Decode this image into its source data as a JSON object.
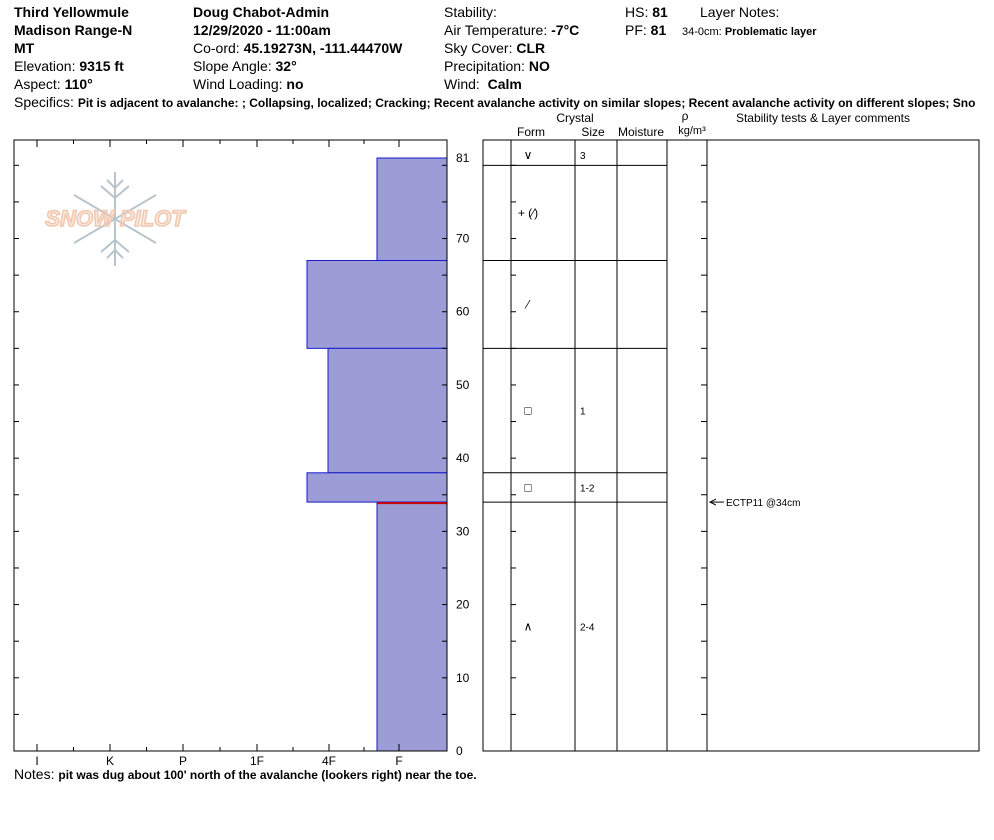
{
  "header": {
    "location": "Third Yellowmule",
    "range": "Madison Range-N",
    "state": "MT",
    "elevation_label": "Elevation:",
    "elevation": "9315 ft",
    "aspect_label": "Aspect:",
    "aspect": "110°",
    "observer": "Doug Chabot-Admin",
    "datetime": "12/29/2020 - 11:00am",
    "coord_label": "Co-ord:",
    "coord": "45.19273N, -111.44470W",
    "slope_label": "Slope Angle:",
    "slope": "32°",
    "wind_loading_label": "Wind Loading:",
    "wind_loading": "no",
    "stability_label": "Stability:",
    "stability": "",
    "air_temp_label": "Air Temperature:",
    "air_temp": "-7°C",
    "sky_label": "Sky Cover:",
    "sky": "CLR",
    "precip_label": "Precipitation:",
    "precip": "NO",
    "wind_label": "Wind:",
    "wind": "Calm",
    "hs_label": "HS:",
    "hs": "81",
    "pf_label": "PF:",
    "pf": "81",
    "layer_notes_label": "Layer Notes:",
    "layer_note_range": "34-0cm:",
    "layer_note_text": "Problematic layer",
    "specifics_label": "Specifics:",
    "specifics": "Pit is adjacent to avalanche: ; Collapsing, localized; Cracking; Recent avalanche activity on similar slopes; Recent avalanche activity on different slopes; Sno"
  },
  "logo_text": "SNOW PILOT",
  "notes_label": "Notes:",
  "notes": "pit was dug about 100' north of the avalanche (lookers right) near the toe.",
  "columns": {
    "crystal": "Crystal",
    "form": "Form",
    "size": "Size",
    "moisture": "Moisture",
    "rho": "ρ",
    "density_unit": "kg/m³",
    "stability_comments": "Stability tests & Layer comments"
  },
  "colors": {
    "layer_fill": "#9c9cd6",
    "layer_edge": "#1a1acc",
    "weak_layer": "#cc0000",
    "logo": "#f2c8b0",
    "snowflake": "#b8c4cc"
  },
  "chart_data": {
    "type": "bar",
    "orientation": "horizontal",
    "xlabel": "",
    "ylabel": "",
    "hardness_categories": [
      "I",
      "K",
      "P",
      "1F",
      "4F",
      "F"
    ],
    "y_ticks": [
      0,
      10,
      20,
      30,
      40,
      50,
      60,
      70,
      81
    ],
    "ylim": [
      0,
      81
    ],
    "layers": [
      {
        "top": 81,
        "bottom": 67,
        "hardness": "F"
      },
      {
        "top": 67,
        "bottom": 55,
        "hardness": "4F"
      },
      {
        "top": 55,
        "bottom": 38,
        "hardness": "4F-"
      },
      {
        "top": 38,
        "bottom": 34,
        "hardness": "4F"
      },
      {
        "top": 34,
        "bottom": 0,
        "hardness": "F"
      }
    ],
    "hardness_values": [
      1,
      2,
      1.7,
      2,
      1
    ],
    "weak_layer_depth": 34,
    "crystals": [
      {
        "top": 81,
        "bottom": 80,
        "form": "∨",
        "size": "3"
      },
      {
        "top": 80,
        "bottom": 67,
        "form": "+ (⁄)",
        "size": ""
      },
      {
        "top": 67,
        "bottom": 55,
        "form": "⁄",
        "size": ""
      },
      {
        "top": 55,
        "bottom": 38,
        "form": "□",
        "size": "1"
      },
      {
        "top": 38,
        "bottom": 34,
        "form": "□",
        "size": "1-2"
      },
      {
        "top": 34,
        "bottom": 0,
        "form": "∧",
        "size": "2-4"
      }
    ],
    "stability_tests": [
      {
        "depth": 34,
        "text": "ECTP11 @34cm"
      }
    ]
  }
}
